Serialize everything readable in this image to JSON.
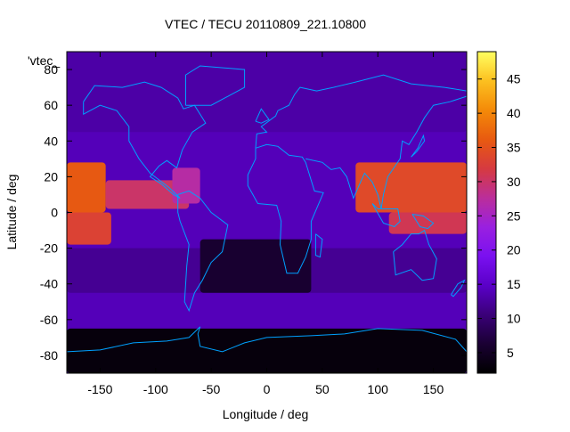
{
  "chart_data": {
    "type": "heatmap",
    "title": "VTEC / TECU 20110809_221.10800",
    "xlabel": "Longitude / deg",
    "ylabel": "Latitude / deg",
    "legend_key": "'vtec_",
    "xlim": [
      -180,
      180
    ],
    "ylim": [
      -90,
      90
    ],
    "x_ticks": [
      -150,
      -100,
      -50,
      0,
      50,
      100,
      150
    ],
    "x_tick_labels": [
      "-150",
      "-100",
      "-50",
      "0",
      "50",
      "100",
      "150"
    ],
    "y_ticks": [
      -80,
      -60,
      -40,
      -20,
      0,
      20,
      40,
      60,
      80
    ],
    "y_tick_labels": [
      "-80",
      "-60",
      "-40",
      "-20",
      "0",
      "20",
      "40",
      "60",
      "80"
    ],
    "colorbar": {
      "range": [
        2,
        49
      ],
      "ticks": [
        5,
        10,
        15,
        20,
        25,
        30,
        35,
        40,
        45
      ],
      "tick_labels": [
        "5",
        "10",
        "15",
        "20",
        "25",
        "30",
        "35",
        "40",
        "45"
      ],
      "palette": [
        "#000000",
        "#1a0033",
        "#3a0078",
        "#5a00c8",
        "#7a10f0",
        "#9a20e0",
        "#bb2e9a",
        "#d63a40",
        "#e85a10",
        "#f48a08",
        "#fcc020",
        "#ffff60"
      ]
    },
    "value_regions": [
      {
        "lon": [
          -180,
          -145
        ],
        "lat": [
          0,
          28
        ],
        "value": 36
      },
      {
        "lon": [
          -180,
          -140
        ],
        "lat": [
          -18,
          0
        ],
        "value": 33
      },
      {
        "lon": [
          -145,
          -70
        ],
        "lat": [
          2,
          18
        ],
        "value": 30
      },
      {
        "lon": [
          -85,
          -60
        ],
        "lat": [
          5,
          25
        ],
        "value": 27
      },
      {
        "lon": [
          80,
          180
        ],
        "lat": [
          0,
          28
        ],
        "value": 34
      },
      {
        "lon": [
          110,
          180
        ],
        "lat": [
          -12,
          0
        ],
        "value": 31
      },
      {
        "lon": [
          -180,
          180
        ],
        "lat": [
          -45,
          -20
        ],
        "value": 12
      },
      {
        "lon": [
          -60,
          40
        ],
        "lat": [
          -45,
          -15
        ],
        "value": 6
      },
      {
        "lon": [
          -180,
          180
        ],
        "lat": [
          -90,
          -65
        ],
        "value": 3
      },
      {
        "lon": [
          -180,
          180
        ],
        "lat": [
          45,
          90
        ],
        "value": 13
      }
    ],
    "overlay": "coastlines",
    "coastline_color": "#00a0ff",
    "background_value": 14,
    "grid": false
  }
}
